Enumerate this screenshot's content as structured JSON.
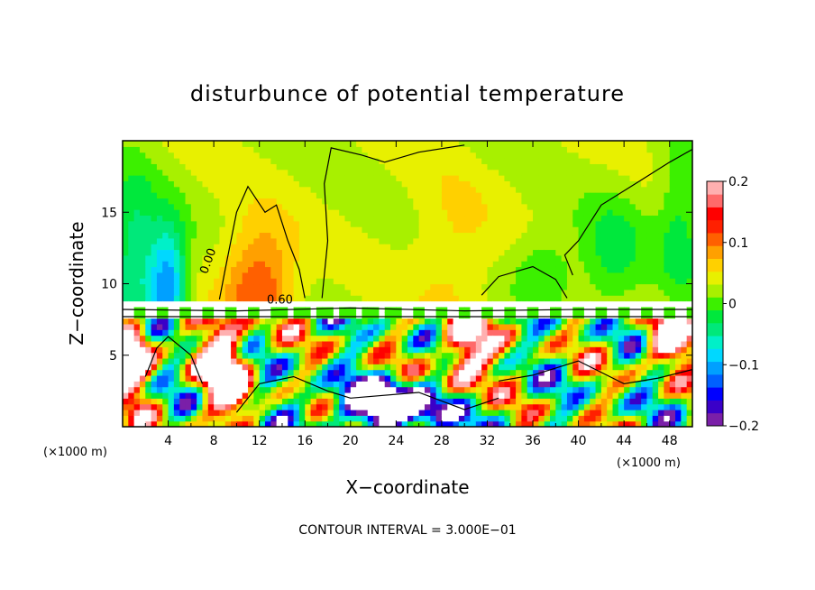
{
  "chart_data": {
    "type": "heatmap",
    "title": "disturbunce of potential temperature",
    "xlabel": "X−coordinate",
    "ylabel": "Z−coordinate",
    "x_unit_left": "(×1000 m)",
    "x_unit_right": "(×1000 m)",
    "footnote": "CONTOUR INTERVAL = 3.000E−01",
    "xlim": [
      0,
      50
    ],
    "ylim": [
      0,
      20
    ],
    "x_ticks": [
      4,
      8,
      12,
      16,
      20,
      24,
      28,
      32,
      36,
      40,
      44,
      48
    ],
    "y_ticks": [
      5,
      10,
      15
    ],
    "contour_labels": [
      {
        "text": "0.00",
        "x": 7.8,
        "y": 11.5
      },
      {
        "text": "0.60",
        "x": 13.8,
        "y": 8.6
      }
    ],
    "colorbar": {
      "range": [
        -0.2,
        0.2
      ],
      "tick_values": [
        0.2,
        0.1,
        0,
        -0.1,
        -0.2
      ],
      "tick_labels": [
        "0.2",
        "0.1",
        "0",
        "−0.1",
        "−0.2"
      ],
      "colors": [
        "#7a1fa8",
        "#3a00c8",
        "#0000ff",
        "#0060ff",
        "#00a0ff",
        "#00d8ff",
        "#00f0c8",
        "#00e87a",
        "#00e83c",
        "#3cf000",
        "#a8f000",
        "#e8f000",
        "#ffd000",
        "#ffa000",
        "#ff6000",
        "#ff2000",
        "#ff0000",
        "#ff6a6a",
        "#ffb0b0"
      ]
    },
    "field_summary": [
      {
        "region": "upper layer, z > 9",
        "values": "mostly 0 to +0.05, with warm (+0.1) column near x=12 and cool (-0.1) near x=4"
      },
      {
        "region": "band near z = 8",
        "values": "white (saturated) stripe with dense contours"
      },
      {
        "region": "lower layer, z < 8",
        "values": "strongly mixed, -0.2 to +0.2, white saturated patches"
      }
    ],
    "colors": {
      "background": "#ffffff",
      "axes": "#000000",
      "zero_color": "#00e83c"
    }
  }
}
